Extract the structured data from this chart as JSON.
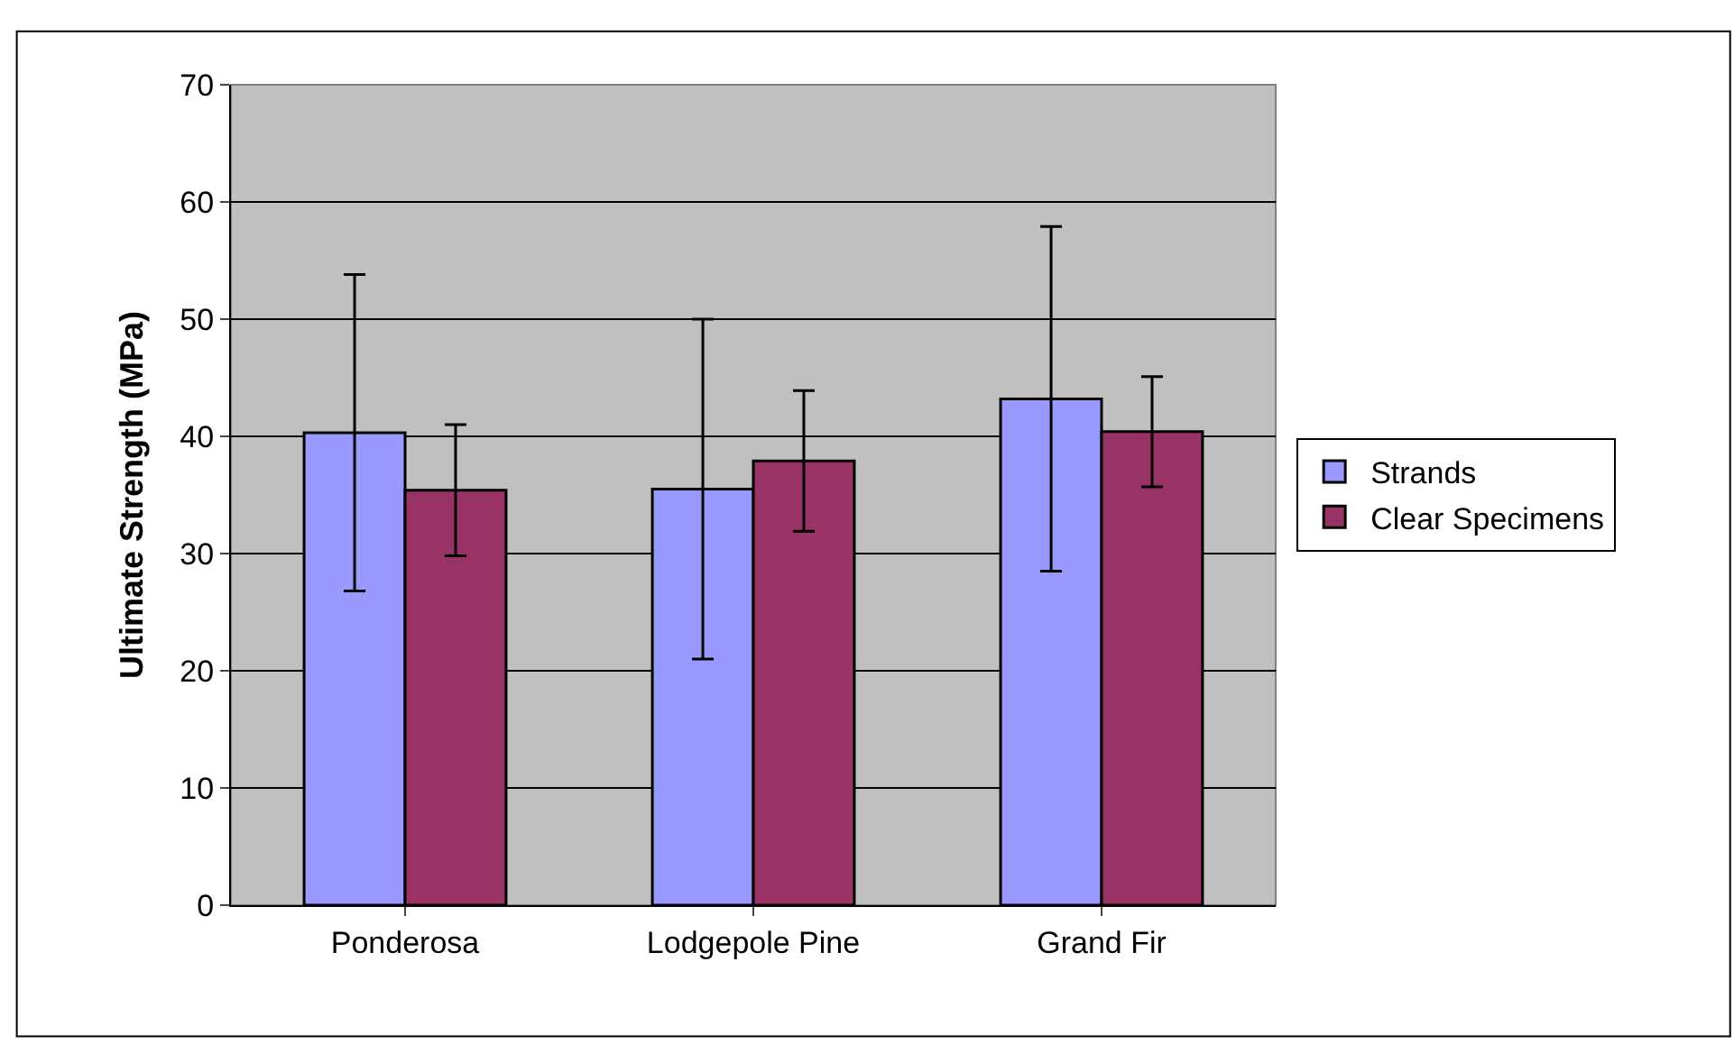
{
  "chart_data": {
    "type": "bar",
    "ylabel": "Ultimate Strength (MPa)",
    "categories": [
      "Ponderosa",
      "Lodgepole Pine",
      "Grand Fir"
    ],
    "series": [
      {
        "name": "Strands",
        "color": "#9999ff",
        "values": [
          40.3,
          35.5,
          43.2
        ],
        "errors": [
          13.5,
          14.5,
          14.7
        ]
      },
      {
        "name": "Clear Specimens",
        "color": "#993366",
        "values": [
          35.4,
          37.9,
          40.4
        ],
        "errors": [
          5.6,
          6,
          4.7
        ]
      }
    ],
    "ylim": [
      0,
      70
    ],
    "yticks": [
      0,
      10,
      20,
      30,
      40,
      50,
      60,
      70
    ],
    "grid": "y",
    "legend": "right"
  }
}
